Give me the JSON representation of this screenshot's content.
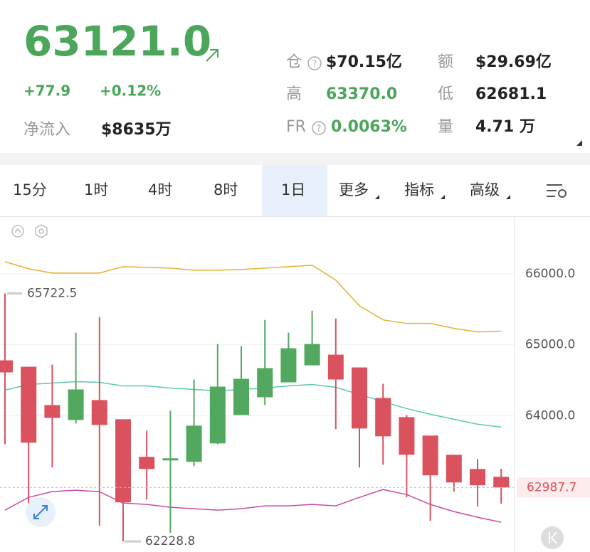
{
  "header": {
    "price": "63121.0",
    "change": "+77.9",
    "change_pct": "+0.12%",
    "net_inflow_label": "净流入",
    "net_inflow": "$8635万",
    "stats": [
      {
        "label": "仓",
        "value": "$70.15亿"
      },
      {
        "label": "额",
        "value": "$29.69亿"
      },
      {
        "label": "高",
        "value": "63370.0"
      },
      {
        "label": "低",
        "value": "62681.1"
      },
      {
        "label": "FR",
        "value": "0.0063%"
      },
      {
        "label": "量",
        "value": "4.71 万"
      }
    ]
  },
  "tabs": [
    "15分",
    "1时",
    "4时",
    "8时",
    "1日",
    "更多",
    "指标",
    "高级"
  ],
  "chart_data": {
    "type": "candlestick",
    "up_color": "#52a85f",
    "down_color": "#d9525e",
    "open": [
      64780,
      64690,
      64150,
      63940,
      64220,
      63950,
      63420,
      63370,
      63350,
      63610,
      64010,
      64260,
      64470,
      64710,
      64860,
      64680,
      64250,
      63980,
      63720,
      63450,
      63250,
      63140
    ],
    "high": [
      65722.5,
      64690,
      64720,
      65170,
      65390,
      63950,
      63790,
      64070,
      64510,
      65010,
      64980,
      65350,
      65170,
      65480,
      65370,
      64680,
      64450,
      64010,
      63720,
      63450,
      63390,
      63250
    ],
    "low": [
      63600,
      62730,
      63270,
      63890,
      62450,
      62228.8,
      62820,
      62350,
      63290,
      63600,
      64010,
      64150,
      64470,
      64710,
      63810,
      63270,
      63310,
      62850,
      62520,
      62930,
      62720,
      62760
    ],
    "close": [
      64610,
      63620,
      63970,
      64370,
      63870,
      62780,
      63250,
      63400,
      63860,
      64410,
      64520,
      64670,
      64950,
      65010,
      64510,
      63820,
      63710,
      63450,
      63160,
      63060,
      63020,
      62990
    ],
    "lines": [
      {
        "color": "#e6b032",
        "values": [
          66170,
          66070,
          66010,
          66010,
          66010,
          66100,
          66090,
          66080,
          66050,
          66050,
          66060,
          66080,
          66100,
          66120,
          65910,
          65550,
          65350,
          65300,
          65300,
          65230,
          65180,
          65190
        ]
      },
      {
        "color": "#5cc7b2",
        "values": [
          64360,
          64440,
          64460,
          64480,
          64470,
          64420,
          64420,
          64390,
          64370,
          64350,
          64370,
          64390,
          64420,
          64440,
          64400,
          64300,
          64200,
          64100,
          64020,
          63950,
          63880,
          63840
        ]
      },
      {
        "color": "#c94aa8",
        "values": [
          62670,
          62850,
          62930,
          62950,
          62930,
          62770,
          62750,
          62710,
          62690,
          62670,
          62690,
          62730,
          62730,
          62750,
          62730,
          62850,
          62960,
          62890,
          62750,
          62650,
          62570,
          62500
        ]
      }
    ],
    "ylim": [
      62080,
      66800
    ],
    "yticks": [
      {
        "value": 64000,
        "label": "64000.0"
      },
      {
        "value": 65000,
        "label": "65000.0"
      },
      {
        "value": 66000,
        "label": "66000.0"
      }
    ],
    "grid": true,
    "high_marker": 65722.5,
    "low_marker": 62228.8,
    "last_price": 62987.7
  }
}
